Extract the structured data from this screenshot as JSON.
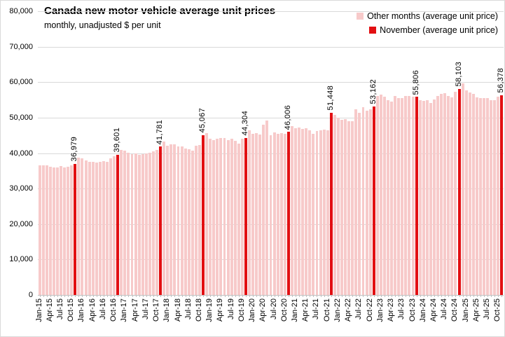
{
  "header": {
    "title": "Canada new motor vehicle average unit prices",
    "subtitle": "monthly, unadjusted $ per unit"
  },
  "legend": {
    "other_label": "Other months (average unit price)",
    "november_label": "November (average unit price)"
  },
  "colors": {
    "other_bar": "#f7caca",
    "november_bar": "#e20f12",
    "gridline": "#d9d9d9",
    "axis": "#bfbfbf",
    "text": "#000000"
  },
  "chart_data": {
    "type": "bar",
    "title": "Canada new motor vehicle average unit prices",
    "subtitle": "monthly, unadjusted $ per unit",
    "xlabel": "",
    "ylabel": "unadjusted $ per unit",
    "ylim": [
      0,
      80000
    ],
    "y_tick_step": 10000,
    "x_label_every": 3,
    "grid": true,
    "legend_position": "top-right",
    "highlight_rule": "November bars are red with data labels; November values are exact, other months estimated from gridlines",
    "categories": [
      "Jan-15",
      "Feb-15",
      "Mar-15",
      "Apr-15",
      "May-15",
      "Jun-15",
      "Jul-15",
      "Aug-15",
      "Sep-15",
      "Oct-15",
      "Nov-15",
      "Dec-15",
      "Jan-16",
      "Feb-16",
      "Mar-16",
      "Apr-16",
      "May-16",
      "Jun-16",
      "Jul-16",
      "Aug-16",
      "Sep-16",
      "Oct-16",
      "Nov-16",
      "Dec-16",
      "Jan-17",
      "Feb-17",
      "Mar-17",
      "Apr-17",
      "May-17",
      "Jun-17",
      "Jul-17",
      "Aug-17",
      "Sep-17",
      "Oct-17",
      "Nov-17",
      "Dec-17",
      "Jan-18",
      "Feb-18",
      "Mar-18",
      "Apr-18",
      "May-18",
      "Jun-18",
      "Jul-18",
      "Aug-18",
      "Sep-18",
      "Oct-18",
      "Nov-18",
      "Dec-18",
      "Jan-19",
      "Feb-19",
      "Mar-19",
      "Apr-19",
      "May-19",
      "Jun-19",
      "Jul-19",
      "Aug-19",
      "Sep-19",
      "Oct-19",
      "Nov-19",
      "Dec-19",
      "Jan-20",
      "Feb-20",
      "Mar-20",
      "Apr-20",
      "May-20",
      "Jun-20",
      "Jul-20",
      "Aug-20",
      "Sep-20",
      "Oct-20",
      "Nov-20",
      "Dec-20",
      "Jan-21",
      "Feb-21",
      "Mar-21",
      "Apr-21",
      "May-21",
      "Jun-21",
      "Jul-21",
      "Aug-21",
      "Sep-21",
      "Oct-21",
      "Nov-21",
      "Dec-21",
      "Jan-22",
      "Feb-22",
      "Mar-22",
      "Apr-22",
      "May-22",
      "Jun-22",
      "Jul-22",
      "Aug-22",
      "Sep-22",
      "Oct-22",
      "Nov-22",
      "Dec-22",
      "Jan-23",
      "Feb-23",
      "Mar-23",
      "Apr-23",
      "May-23",
      "Jun-23",
      "Jul-23",
      "Aug-23",
      "Sep-23",
      "Oct-23",
      "Nov-23",
      "Dec-23",
      "Jan-24",
      "Feb-24",
      "Mar-24",
      "Apr-24",
      "May-24",
      "Jun-24",
      "Jul-24",
      "Aug-24",
      "Sep-24",
      "Oct-24",
      "Nov-24",
      "Dec-24",
      "Jan-25",
      "Feb-25",
      "Mar-25",
      "Apr-25",
      "May-25",
      "Jun-25",
      "Jul-25",
      "Aug-25",
      "Sep-25",
      "Oct-25",
      "Nov-25"
    ],
    "values": [
      36600,
      36600,
      36450,
      36150,
      35900,
      36000,
      36300,
      35950,
      36200,
      36500,
      36979,
      38800,
      38500,
      38000,
      37600,
      37500,
      37300,
      37500,
      37800,
      37600,
      38500,
      39100,
      39601,
      40800,
      40600,
      40100,
      39800,
      39900,
      39600,
      39800,
      39900,
      40100,
      40400,
      40800,
      41781,
      43300,
      42100,
      42400,
      42400,
      41900,
      41800,
      41300,
      41100,
      40600,
      42000,
      42300,
      45067,
      45700,
      44000,
      43600,
      44000,
      44200,
      44300,
      43700,
      44000,
      43400,
      42700,
      44000,
      44304,
      46400,
      45400,
      45700,
      45200,
      48000,
      49100,
      45000,
      45800,
      45400,
      45600,
      45400,
      46006,
      47700,
      47100,
      47300,
      46900,
      47000,
      46500,
      45400,
      46200,
      46500,
      46700,
      46500,
      51448,
      50700,
      50000,
      49300,
      49600,
      49000,
      49000,
      52400,
      51300,
      52900,
      52000,
      52400,
      53162,
      56200,
      56500,
      55900,
      54900,
      54500,
      56200,
      55500,
      55500,
      56200,
      56200,
      55900,
      55806,
      54900,
      54700,
      54900,
      54200,
      55200,
      56200,
      56700,
      56800,
      56200,
      55700,
      57200,
      58103,
      59600,
      57600,
      57000,
      56600,
      55800,
      55500,
      55600,
      55500,
      54900,
      55000,
      55900,
      56378
    ],
    "november_data_labels": [
      "36,979",
      "39,601",
      "41,781",
      "45,067",
      "44,304",
      "46,006",
      "51,448",
      "53,162",
      "55,806",
      "58,103",
      "56,378"
    ],
    "y_tick_labels": [
      "0",
      "10,000",
      "20,000",
      "30,000",
      "40,000",
      "50,000",
      "60,000",
      "70,000",
      "80,000"
    ]
  }
}
